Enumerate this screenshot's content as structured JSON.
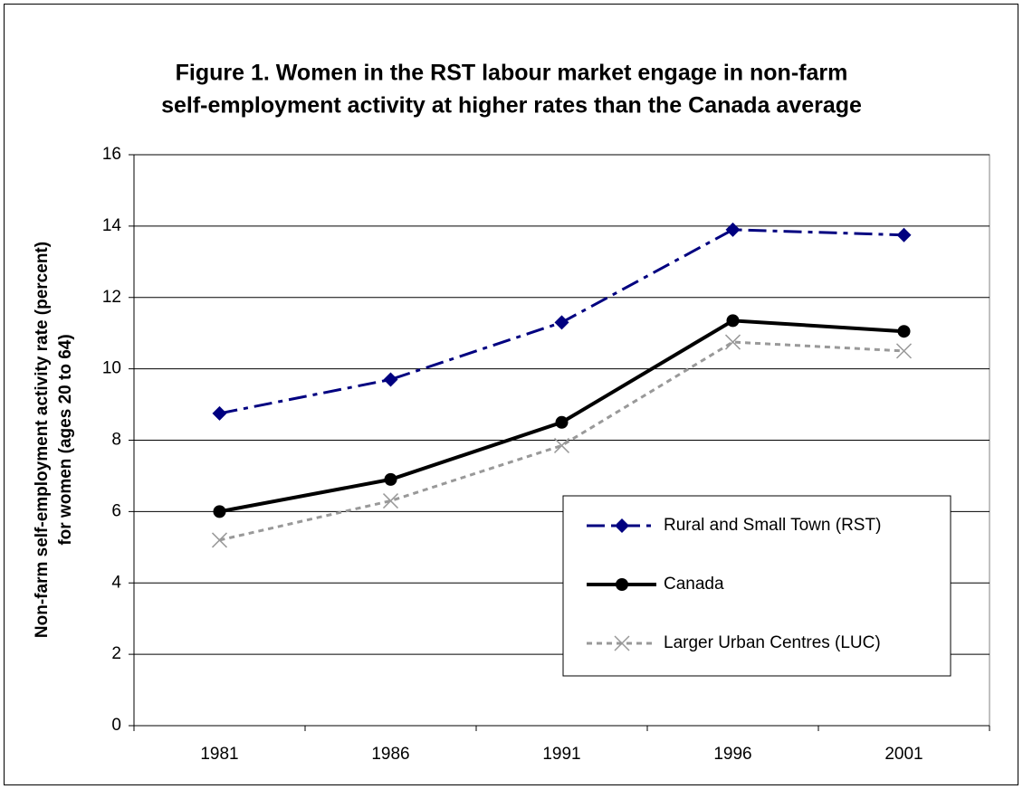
{
  "chart_data": {
    "type": "line",
    "title": [
      "Figure 1.  Women in the RST labour market engage in non-farm",
      "self-employment activity at higher rates than the Canada average"
    ],
    "ylabel": [
      "Non-farm self-employment activity rate (percent)",
      "for women (ages 20 to 64)"
    ],
    "categories": [
      "1981",
      "1986",
      "1991",
      "1996",
      "2001"
    ],
    "series": [
      {
        "name": "Rural and Small Town (RST)",
        "color": "#000080",
        "values": [
          8.75,
          9.7,
          11.3,
          13.9,
          13.75
        ]
      },
      {
        "name": "Canada",
        "color": "#000000",
        "values": [
          6.0,
          6.9,
          8.5,
          11.35,
          11.05
        ]
      },
      {
        "name": "Larger Urban Centres (LUC)",
        "color": "#999999",
        "values": [
          5.2,
          6.3,
          7.85,
          10.75,
          10.5
        ]
      }
    ],
    "ylim": [
      0,
      16
    ],
    "yticks": [
      0,
      2,
      4,
      6,
      8,
      10,
      12,
      14,
      16
    ],
    "grid": true,
    "legend": "lower right"
  }
}
